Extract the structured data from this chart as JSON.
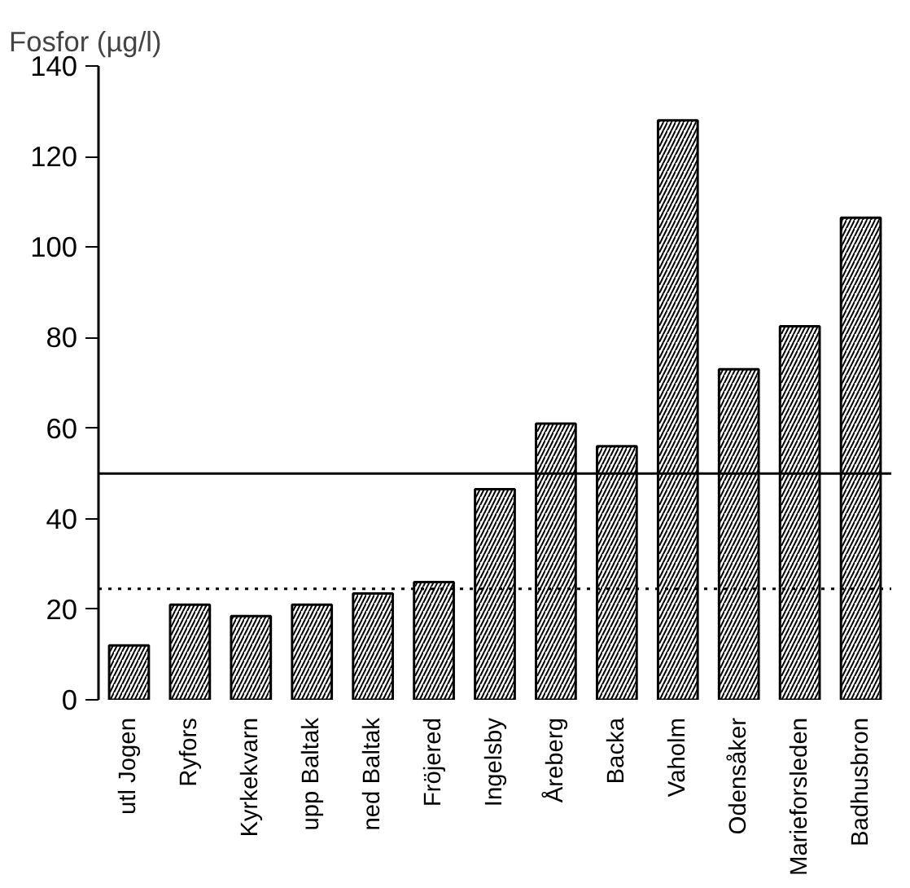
{
  "chart_data": {
    "type": "bar",
    "ylabel": "Fosfor (µg/l)",
    "categories": [
      "utl Jogen",
      "Ryfors",
      "Kyrkekvarn",
      "upp Baltak",
      "ned Baltak",
      "Fröjered",
      "Ingelsby",
      "Åreberg",
      "Backa",
      "Vaholm",
      "Odensåker",
      "Marieforsleden",
      "Badhusbron"
    ],
    "values": [
      12,
      21,
      18.5,
      21,
      23.5,
      26,
      46.5,
      61,
      56,
      128,
      73,
      82.5,
      106.5
    ],
    "color": "#000000",
    "ylim": [
      0,
      140
    ],
    "yticks": [
      0,
      20,
      40,
      60,
      80,
      100,
      120,
      140
    ],
    "grid": false,
    "ref_lines": [
      {
        "axis": "y",
        "value": 50,
        "line_style": "solid",
        "color": "#000000"
      },
      {
        "axis": "y",
        "value": 24.5,
        "line_style": "dotted",
        "color": "#000000"
      }
    ]
  }
}
